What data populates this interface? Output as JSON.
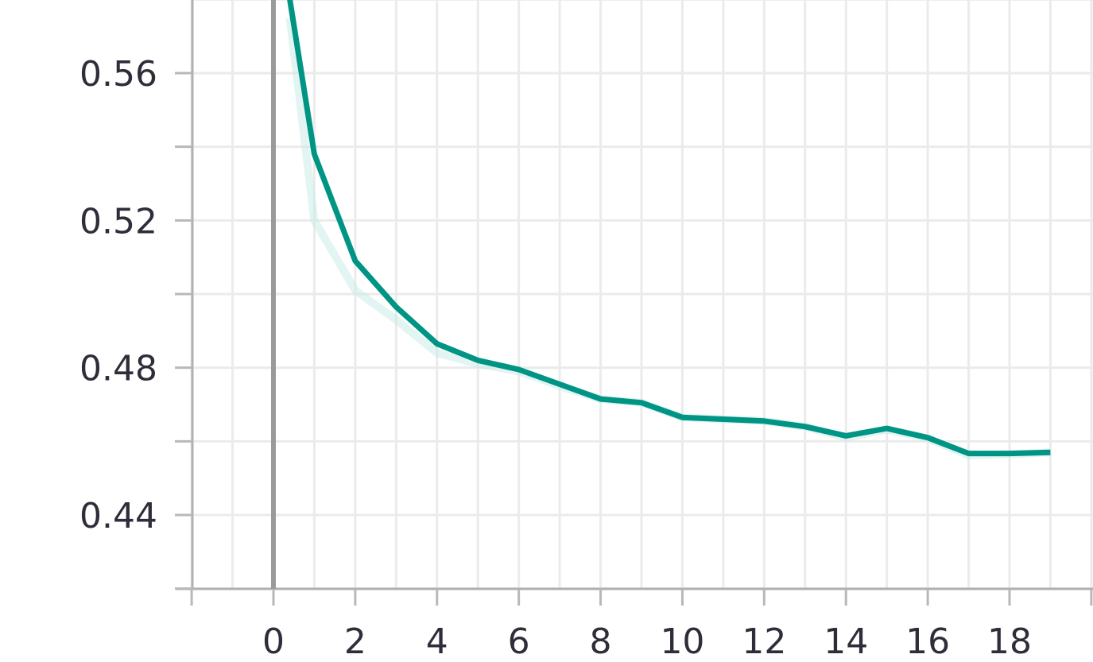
{
  "colors": {
    "line": "#009485",
    "smoothed": "#c5ece6",
    "grid": "#ebebeb",
    "axis": "#b0b0b0",
    "text": "#2e2e3a"
  },
  "chart_data": {
    "type": "line",
    "title": "",
    "xlabel": "",
    "ylabel": "",
    "xlim": [
      -2,
      20
    ],
    "ylim": [
      0.42,
      0.58
    ],
    "grid": true,
    "legend": "none",
    "x_ticks": [
      "0",
      "2",
      "4",
      "6",
      "8",
      "10",
      "12",
      "14",
      "16",
      "18"
    ],
    "y_ticks": [
      "0.44",
      "0.48",
      "0.52",
      "0.56"
    ],
    "series": [
      {
        "role": "value",
        "x": [
          0.4,
          1,
          2,
          3,
          4,
          5,
          6,
          7,
          8,
          9,
          10,
          11,
          12,
          13,
          14,
          15,
          16,
          17,
          18,
          19
        ],
        "y": [
          0.58,
          0.538,
          0.509,
          0.4965,
          0.4865,
          0.482,
          0.4795,
          0.4755,
          0.4715,
          0.4705,
          0.4665,
          0.466,
          0.4655,
          0.464,
          0.4615,
          0.4635,
          0.461,
          0.4567,
          0.4567,
          0.457
        ]
      },
      {
        "role": "smoothed-shadow",
        "x": [
          0.4,
          1,
          2,
          3,
          4,
          5,
          6,
          7,
          8,
          9,
          10,
          11,
          12,
          13,
          14,
          15,
          16,
          17,
          18,
          19
        ],
        "y": [
          0.575,
          0.52,
          0.501,
          0.493,
          0.484,
          0.481,
          0.479,
          0.475,
          0.4715,
          0.4705,
          0.4665,
          0.466,
          0.4655,
          0.464,
          0.461,
          0.4632,
          0.4608,
          0.4562,
          0.4565,
          0.457
        ]
      }
    ]
  }
}
